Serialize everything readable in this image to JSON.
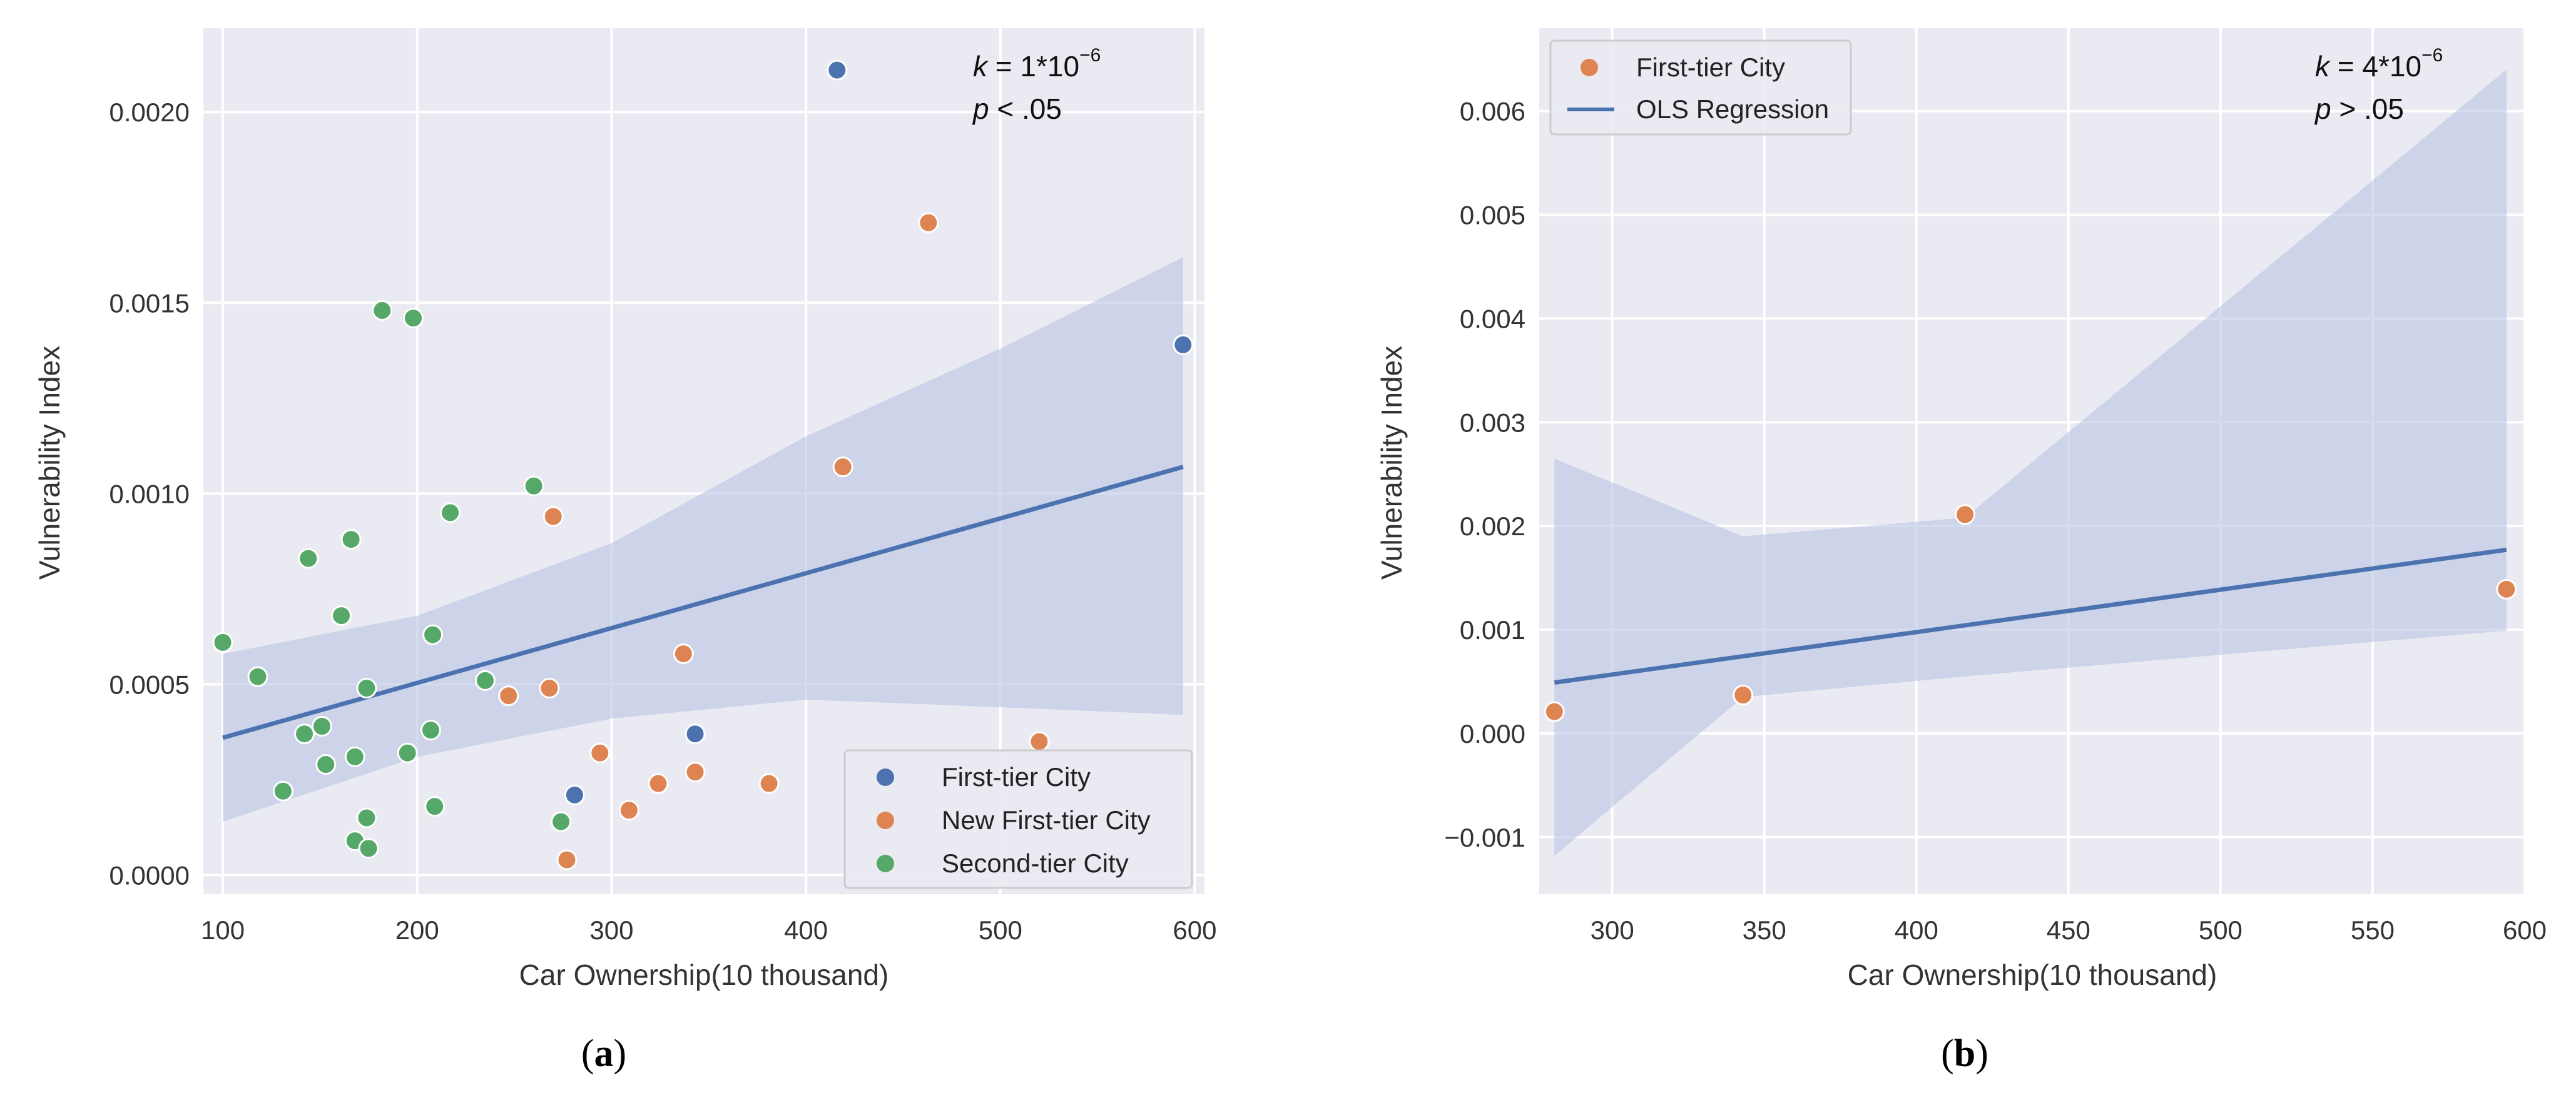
{
  "colors": {
    "first_tier": "#4c72b0",
    "new_first_tier": "#dd8452",
    "second_tier": "#55a868",
    "regression": "#4c72b0",
    "panel_bg": "#eaeaf2",
    "band": "#b9c4e2"
  },
  "chart_data": [
    {
      "type": "scatter",
      "caption": "(a)",
      "caption_letter": "a",
      "xlabel": "Car Ownership(10 thousand)",
      "ylabel": "Vulnerability Index",
      "xlim": [
        90,
        605
      ],
      "ylim": [
        -5e-05,
        0.00222
      ],
      "xticks": [
        100,
        200,
        300,
        400,
        500,
        600
      ],
      "xtick_labels": [
        "100",
        "200",
        "300",
        "400",
        "500",
        "600"
      ],
      "yticks": [
        0.0,
        0.0005,
        0.001,
        0.0015,
        0.002
      ],
      "ytick_labels": [
        "0.0000",
        "0.0005",
        "0.0010",
        "0.0015",
        "0.0020"
      ],
      "annotation": {
        "k_symbol": "k",
        "k_value": " = 1*10",
        "k_exp": "−6",
        "p_symbol": "p",
        "p_value": " < .05"
      },
      "legend": {
        "position": "bottom-right",
        "entries": [
          "First-tier City",
          "New First-tier City",
          "Second-tier City"
        ]
      },
      "series": [
        {
          "name": "First-tier City",
          "color_key": "first_tier",
          "points": [
            [
              416,
              0.00211
            ],
            [
              594,
              0.00139
            ],
            [
              343,
              0.00037
            ],
            [
              281,
              0.00021
            ]
          ]
        },
        {
          "name": "New First-tier City",
          "color_key": "new_first_tier",
          "points": [
            [
              463,
              0.00171
            ],
            [
              419,
              0.00107
            ],
            [
              270,
              0.00094
            ],
            [
              337,
              0.00058
            ],
            [
              268,
              0.00049
            ],
            [
              247,
              0.00047
            ],
            [
              520,
              0.00035
            ],
            [
              294,
              0.00032
            ],
            [
              343,
              0.00027
            ],
            [
              324,
              0.00024
            ],
            [
              381,
              0.00024
            ],
            [
              309,
              0.00017
            ],
            [
              277,
              4e-05
            ]
          ]
        },
        {
          "name": "Second-tier City",
          "color_key": "second_tier",
          "points": [
            [
              182,
              0.00148
            ],
            [
              198,
              0.00146
            ],
            [
              260,
              0.00102
            ],
            [
              217,
              0.00095
            ],
            [
              166,
              0.00088
            ],
            [
              144,
              0.00083
            ],
            [
              161,
              0.00068
            ],
            [
              208,
              0.00063
            ],
            [
              100,
              0.00061
            ],
            [
              118,
              0.00052
            ],
            [
              235,
              0.00051
            ],
            [
              174,
              0.00049
            ],
            [
              151,
              0.00039
            ],
            [
              142,
              0.00037
            ],
            [
              207,
              0.00038
            ],
            [
              195,
              0.00032
            ],
            [
              168,
              0.00031
            ],
            [
              153,
              0.00029
            ],
            [
              131,
              0.00022
            ],
            [
              209,
              0.00018
            ],
            [
              174,
              0.00015
            ],
            [
              274,
              0.00014
            ],
            [
              168,
              9e-05
            ],
            [
              175,
              7e-05
            ]
          ]
        }
      ],
      "regression": {
        "name": "OLS Regression",
        "x": [
          100,
          594
        ],
        "y": [
          0.00036,
          0.00107
        ]
      },
      "ci_band": {
        "x": [
          100,
          200,
          300,
          400,
          500,
          594
        ],
        "lower": [
          0.00014,
          0.00031,
          0.00041,
          0.00046,
          0.00044,
          0.00042
        ],
        "upper": [
          0.00058,
          0.00068,
          0.00087,
          0.00115,
          0.00138,
          0.00162
        ]
      }
    },
    {
      "type": "scatter",
      "caption": "(b)",
      "caption_letter": "b",
      "xlabel": "Car Ownership(10 thousand)",
      "ylabel": "Vulnerability Index",
      "xlim": [
        276,
        600
      ],
      "ylim": [
        -0.00155,
        0.0068
      ],
      "xticks": [
        300,
        350,
        400,
        450,
        500,
        550,
        600
      ],
      "xtick_labels": [
        "300",
        "350",
        "400",
        "450",
        "500",
        "550",
        "600"
      ],
      "yticks": [
        -0.001,
        0.0,
        0.001,
        0.002,
        0.003,
        0.004,
        0.005,
        0.006
      ],
      "ytick_labels": [
        "−0.001",
        "0.000",
        "0.001",
        "0.002",
        "0.003",
        "0.004",
        "0.005",
        "0.006"
      ],
      "annotation": {
        "k_symbol": "k",
        "k_value": " = 4*10",
        "k_exp": "−6",
        "p_symbol": "p",
        "p_value": " > .05"
      },
      "legend": {
        "position": "top-left",
        "entries": [
          "First-tier City",
          "OLS Regression"
        ]
      },
      "series": [
        {
          "name": "First-tier City",
          "color_key": "new_first_tier",
          "points": [
            [
              281,
              0.00021
            ],
            [
              343,
              0.00037
            ],
            [
              416,
              0.00211
            ],
            [
              594,
              0.00139
            ]
          ]
        }
      ],
      "regression": {
        "name": "OLS Regression",
        "x": [
          281,
          594
        ],
        "y": [
          0.00049,
          0.00177
        ]
      },
      "ci_band": {
        "x": [
          281,
          343,
          416,
          594
        ],
        "lower": [
          -0.00118,
          0.00035,
          0.00055,
          0.00099
        ],
        "upper": [
          0.00265,
          0.0019,
          0.00208,
          0.0064
        ]
      }
    }
  ]
}
